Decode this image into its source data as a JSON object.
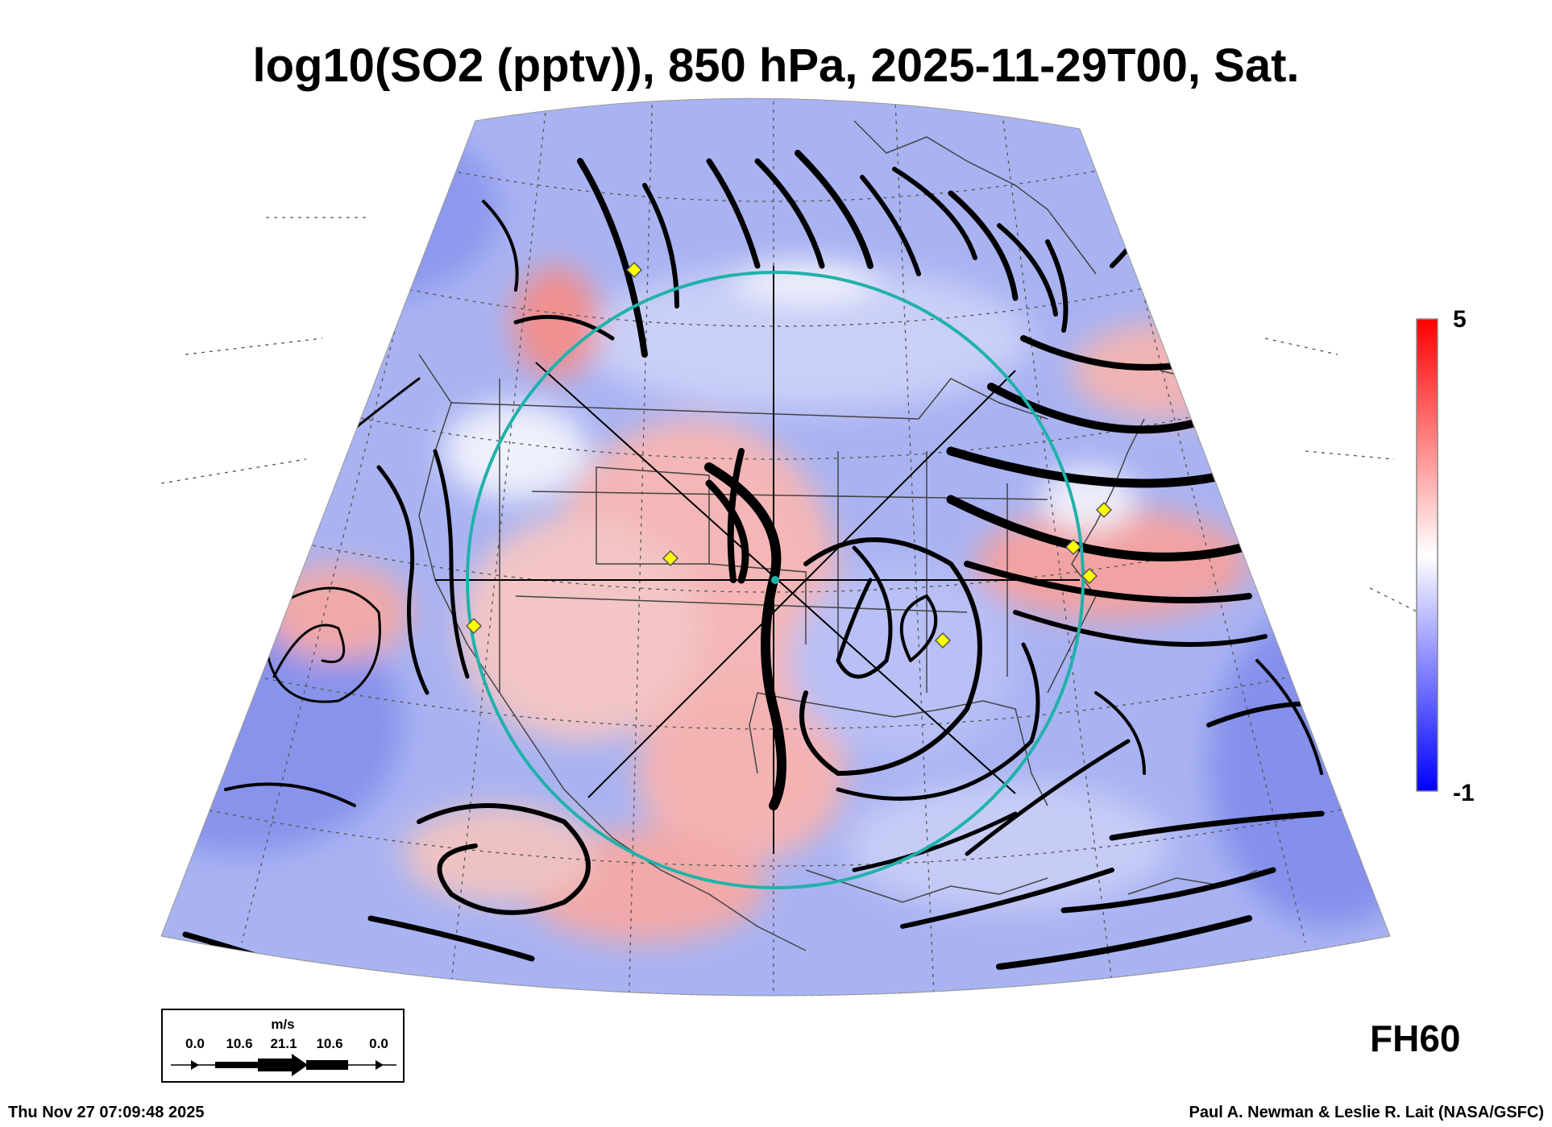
{
  "title": "log10(SO2 (pptv)), 850 hPa, 2025-11-29T00, Sat.",
  "colorbar": {
    "max_label": "5",
    "min_label": "-1",
    "max_value": 5,
    "min_value": -1,
    "colors": [
      "#0000ff",
      "#ffffff",
      "#ff0000"
    ]
  },
  "forecast_hour": "FH60",
  "wind_legend": {
    "unit": "m/s",
    "ticks": [
      "0.0",
      "10.6",
      "21.1",
      "10.6",
      "0.0"
    ]
  },
  "timestamp": "Thu Nov 27 07:09:48 2025",
  "credit": "Paul A. Newman & Leslie R. Lait (NASA/GSFC)",
  "map": {
    "circle_color": "#20b2aa",
    "marker_color": "#ffff00"
  }
}
